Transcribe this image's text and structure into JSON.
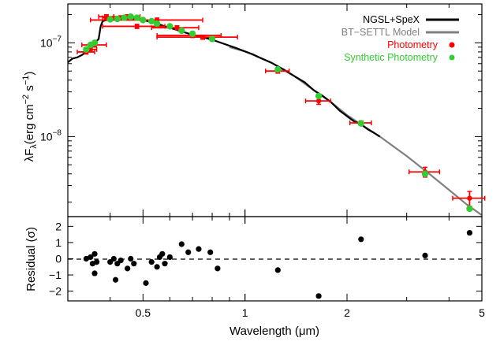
{
  "chart_data": {
    "type": "scatter",
    "xlabel": "Wavelength (μm)",
    "x_scale": "log",
    "xlim": [
      0.3,
      5.0
    ],
    "x_ticks": [
      {
        "value": 0.5,
        "label": "0.5"
      },
      {
        "value": 1,
        "label": "1"
      },
      {
        "value": 2,
        "label": "2"
      },
      {
        "value": 5,
        "label": "5"
      }
    ],
    "top_panel": {
      "ylabel": "λF",
      "ylabel_sub": "λ",
      "ylabel_unit": "(erg cm",
      "ylabel_sup1": "−2",
      "ylabel_s": " s",
      "ylabel_sup2": "−1",
      "ylabel_close": ")",
      "y_scale": "log",
      "ylim": [
        1.4e-09,
        2.6e-07
      ],
      "y_ticks": [
        {
          "value": 1e-07,
          "base": "10",
          "exp": "−7"
        },
        {
          "value": 1e-08,
          "base": "10",
          "exp": "−8"
        }
      ],
      "legend_position": "top-right",
      "legend": [
        {
          "label": "NGSL+SpeX",
          "kind": "line",
          "color": "#000000",
          "text_color": "#000000"
        },
        {
          "label": "BT−SETTL Model",
          "kind": "line",
          "color": "#808080",
          "text_color": "#808080"
        },
        {
          "label": "Photometry",
          "kind": "dot",
          "color": "#ff0000",
          "text_color": "#ff0000"
        },
        {
          "label": "Synthetic Photometry",
          "kind": "dot",
          "color": "#33cc33",
          "text_color": "#33cc33"
        }
      ],
      "series": [
        {
          "name": "NGSL+SpeX",
          "color": "#000000",
          "x": [
            0.3,
            0.31,
            0.32,
            0.33,
            0.34,
            0.345,
            0.35,
            0.36,
            0.37,
            0.375,
            0.38,
            0.39,
            0.4,
            0.42,
            0.45,
            0.48,
            0.5,
            0.52,
            0.55,
            0.58,
            0.6,
            0.65,
            0.7,
            0.75,
            0.8,
            0.85,
            0.9,
            0.95,
            1.0,
            1.05,
            1.1,
            1.2,
            1.3,
            1.4,
            1.5,
            1.6,
            1.7,
            1.8,
            1.9,
            2.0,
            2.1,
            2.2,
            2.3,
            2.4,
            2.5
          ],
          "y": [
            6.2e-08,
            6.8e-08,
            7e-08,
            7.4e-08,
            8e-08,
            8.5e-08,
            9e-08,
            1e-07,
            1.1e-07,
            1.5e-07,
            1.7e-07,
            1.75e-07,
            1.8e-07,
            1.82e-07,
            1.85e-07,
            1.8e-07,
            1.75e-07,
            1.7e-07,
            1.6e-07,
            1.5e-07,
            1.45e-07,
            1.32e-07,
            1.22e-07,
            1.15e-07,
            1.08e-07,
            1e-07,
            9.3e-08,
            8.7e-08,
            8.1e-08,
            7.6e-08,
            7e-08,
            6.1e-08,
            5.2e-08,
            4.4e-08,
            3.8e-08,
            3.1e-08,
            2.7e-08,
            2.3e-08,
            1.9e-08,
            1.65e-08,
            1.45e-08,
            1.35e-08,
            1.2e-08,
            1.1e-08,
            1e-08
          ]
        },
        {
          "name": "BT−SETTL Model",
          "color": "#808080",
          "x": [
            0.9,
            1.0,
            1.2,
            1.4,
            1.6,
            1.8,
            2.0,
            2.2,
            2.5,
            3.0,
            3.5,
            4.0,
            4.5,
            5.0
          ],
          "y": [
            9e-08,
            8.1e-08,
            6.1e-08,
            4.4e-08,
            3.1e-08,
            2.3e-08,
            1.7e-08,
            1.35e-08,
            1e-08,
            6.2e-09,
            4e-09,
            2.7e-09,
            1.9e-09,
            1.45e-09
          ]
        }
      ],
      "photometry": [
        {
          "x": 0.34,
          "y": 8e-08,
          "xerr": 0.02,
          "yerr": 0.05
        },
        {
          "x": 0.35,
          "y": 8.5e-08,
          "xerr": 0.015,
          "yerr": 0.05
        },
        {
          "x": 0.36,
          "y": 9.5e-08,
          "xerr": 0.03,
          "yerr": 0.05
        },
        {
          "x": 0.39,
          "y": 1.9e-07,
          "xerr": 0.02,
          "yerr": 0.05
        },
        {
          "x": 0.43,
          "y": 1.85e-07,
          "xerr": 0.05,
          "yerr": 0.05
        },
        {
          "x": 0.45,
          "y": 1.9e-07,
          "xerr": 0.04,
          "yerr": 0.05
        },
        {
          "x": 0.48,
          "y": 1.5e-07,
          "xerr": 0.1,
          "yerr": 0.05
        },
        {
          "x": 0.55,
          "y": 1.75e-07,
          "xerr": 0.2,
          "yerr": 0.05
        },
        {
          "x": 0.63,
          "y": 1.45e-07,
          "xerr": 0.1,
          "yerr": 0.05
        },
        {
          "x": 0.7,
          "y": 1.2e-07,
          "xerr": 0.15,
          "yerr": 0.05
        },
        {
          "x": 0.75,
          "y": 1.15e-07,
          "xerr": 0.2,
          "yerr": 0.05
        },
        {
          "x": 1.25,
          "y": 5e-08,
          "xerr": 0.1,
          "yerr": 0.05
        },
        {
          "x": 1.65,
          "y": 2.4e-08,
          "xerr": 0.14,
          "yerr": 0.08
        },
        {
          "x": 2.2,
          "y": 1.4e-08,
          "xerr": 0.16,
          "yerr": 0.05
        },
        {
          "x": 3.4,
          "y": 4.2e-09,
          "xerr": 0.35,
          "yerr": 0.12
        },
        {
          "x": 4.6,
          "y": 2.2e-09,
          "xerr": 0.5,
          "yerr": 0.18
        }
      ],
      "synthetic_photometry": [
        {
          "x": 0.34,
          "y": 8.5e-08
        },
        {
          "x": 0.35,
          "y": 9.5e-08
        },
        {
          "x": 0.36,
          "y": 1e-07
        },
        {
          "x": 0.4,
          "y": 1.78e-07
        },
        {
          "x": 0.42,
          "y": 1.8e-07
        },
        {
          "x": 0.44,
          "y": 1.85e-07
        },
        {
          "x": 0.46,
          "y": 1.9e-07
        },
        {
          "x": 0.48,
          "y": 1.85e-07
        },
        {
          "x": 0.5,
          "y": 1.75e-07
        },
        {
          "x": 0.53,
          "y": 1.7e-07
        },
        {
          "x": 0.55,
          "y": 1.6e-07
        },
        {
          "x": 0.6,
          "y": 1.5e-07
        },
        {
          "x": 0.65,
          "y": 1.35e-07
        },
        {
          "x": 0.7,
          "y": 1.25e-07
        },
        {
          "x": 0.8,
          "y": 1.1e-07
        },
        {
          "x": 1.25,
          "y": 5.2e-08
        },
        {
          "x": 1.65,
          "y": 2.7e-08
        },
        {
          "x": 2.2,
          "y": 1.38e-08
        },
        {
          "x": 3.4,
          "y": 4e-09
        },
        {
          "x": 4.6,
          "y": 1.7e-09
        }
      ]
    },
    "bottom_panel": {
      "ylabel": "Residual (σ)",
      "ylim": [
        -2.6,
        2.6
      ],
      "y_ticks": [
        {
          "value": 2,
          "label": "2"
        },
        {
          "value": 1,
          "label": "1"
        },
        {
          "value": 0,
          "label": "0"
        },
        {
          "value": -1,
          "label": "−1"
        },
        {
          "value": -2,
          "label": "−2"
        }
      ],
      "zero_line": "dashed",
      "points": [
        {
          "x": 0.34,
          "y": 0.0
        },
        {
          "x": 0.35,
          "y": 0.1
        },
        {
          "x": 0.355,
          "y": -0.3
        },
        {
          "x": 0.36,
          "y": -0.9
        },
        {
          "x": 0.36,
          "y": 0.3
        },
        {
          "x": 0.365,
          "y": -0.2
        },
        {
          "x": 0.4,
          "y": -0.2
        },
        {
          "x": 0.41,
          "y": 0.0
        },
        {
          "x": 0.415,
          "y": -1.3
        },
        {
          "x": 0.42,
          "y": -0.3
        },
        {
          "x": 0.43,
          "y": -0.1
        },
        {
          "x": 0.45,
          "y": -0.6
        },
        {
          "x": 0.46,
          "y": 0.0
        },
        {
          "x": 0.47,
          "y": -0.3
        },
        {
          "x": 0.51,
          "y": -1.5
        },
        {
          "x": 0.53,
          "y": -0.2
        },
        {
          "x": 0.55,
          "y": -0.5
        },
        {
          "x": 0.56,
          "y": 0.1
        },
        {
          "x": 0.57,
          "y": 0.3
        },
        {
          "x": 0.58,
          "y": -0.3
        },
        {
          "x": 0.6,
          "y": 0.1
        },
        {
          "x": 0.65,
          "y": 0.9
        },
        {
          "x": 0.68,
          "y": 0.4
        },
        {
          "x": 0.73,
          "y": 0.6
        },
        {
          "x": 0.79,
          "y": 0.4
        },
        {
          "x": 0.83,
          "y": -0.6
        },
        {
          "x": 1.25,
          "y": -0.7
        },
        {
          "x": 1.65,
          "y": -2.3
        },
        {
          "x": 2.2,
          "y": 1.2
        },
        {
          "x": 3.4,
          "y": 0.2
        },
        {
          "x": 4.6,
          "y": 1.6
        }
      ]
    }
  }
}
